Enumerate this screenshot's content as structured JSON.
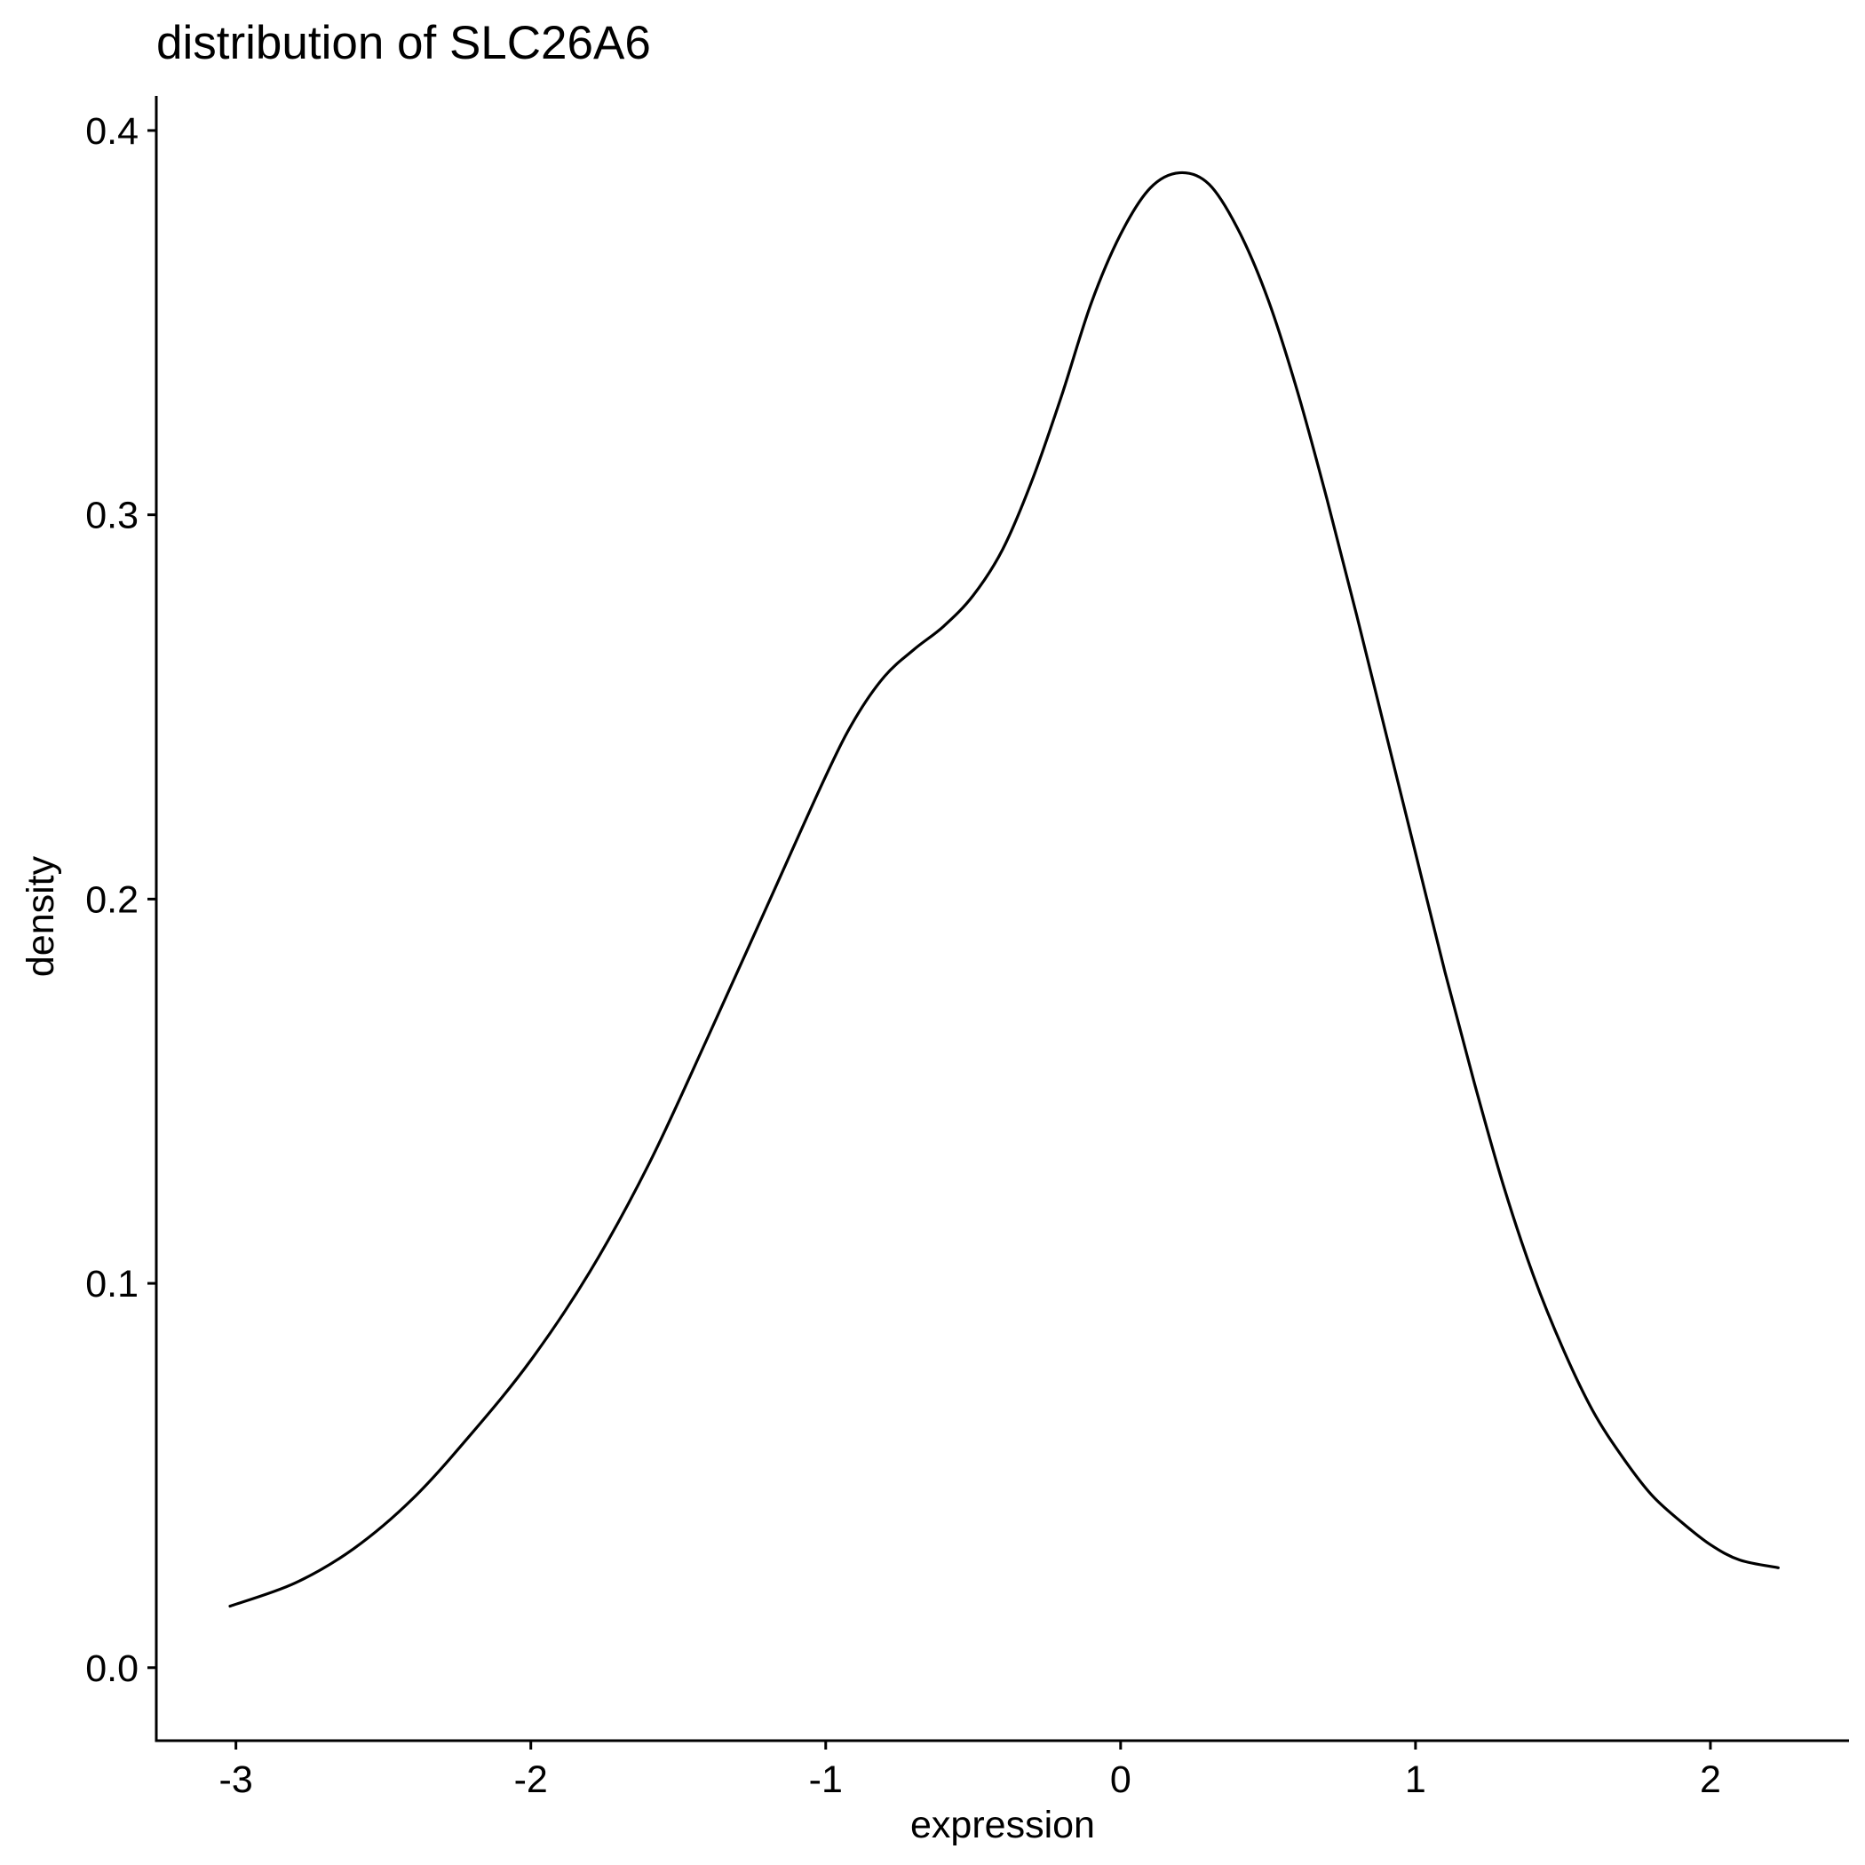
{
  "chart_data": {
    "type": "line",
    "title": "distribution of SLC26A6",
    "xlabel": "expression",
    "ylabel": "density",
    "xlim": [
      -3.27,
      2.47
    ],
    "ylim": [
      -0.019,
      0.409
    ],
    "x_ticks": [
      -3,
      -2,
      -1,
      0,
      1,
      2
    ],
    "x_tick_labels": [
      "-3",
      "-2",
      "-1",
      "0",
      "1",
      "2"
    ],
    "y_ticks": [
      0.0,
      0.1,
      0.2,
      0.3,
      0.4
    ],
    "y_tick_labels": [
      "0.0",
      "0.1",
      "0.2",
      "0.3",
      "0.4"
    ],
    "grid": false,
    "legend": "none",
    "line_color": "#000000",
    "series": [
      {
        "x": [
          -3.02,
          -2.8,
          -2.6,
          -2.4,
          -2.2,
          -2.0,
          -1.8,
          -1.6,
          -1.4,
          -1.2,
          -1.0,
          -0.9,
          -0.8,
          -0.7,
          -0.6,
          -0.5,
          -0.4,
          -0.3,
          -0.2,
          -0.1,
          0.0,
          0.1,
          0.2,
          0.3,
          0.4,
          0.5,
          0.6,
          0.7,
          0.8,
          0.9,
          1.0,
          1.1,
          1.2,
          1.3,
          1.4,
          1.5,
          1.6,
          1.7,
          1.8,
          1.9,
          2.0,
          2.1,
          2.23
        ],
        "y": [
          0.016,
          0.022,
          0.031,
          0.044,
          0.061,
          0.08,
          0.103,
          0.131,
          0.164,
          0.198,
          0.232,
          0.247,
          0.258,
          0.265,
          0.271,
          0.279,
          0.291,
          0.309,
          0.331,
          0.355,
          0.373,
          0.385,
          0.389,
          0.386,
          0.374,
          0.356,
          0.332,
          0.304,
          0.274,
          0.243,
          0.212,
          0.181,
          0.152,
          0.125,
          0.102,
          0.083,
          0.067,
          0.055,
          0.045,
          0.038,
          0.032,
          0.028,
          0.026
        ]
      }
    ]
  }
}
